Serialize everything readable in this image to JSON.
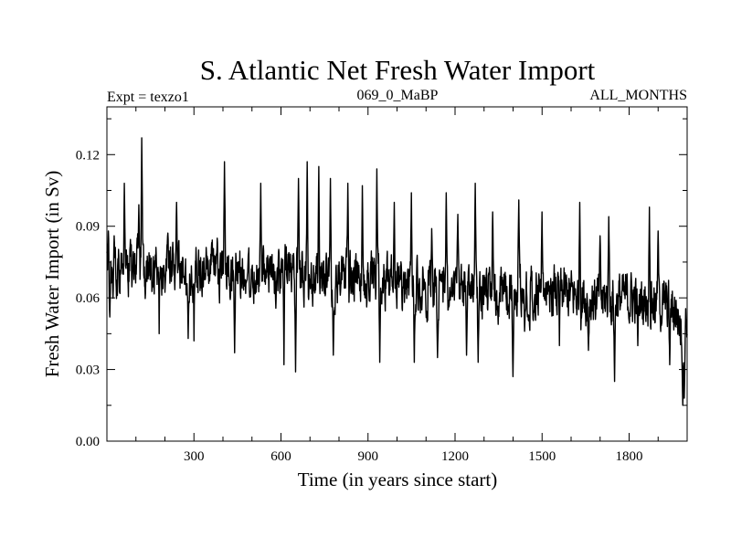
{
  "chart_data": {
    "type": "line",
    "title": "S. Atlantic Net Fresh Water Import",
    "subtitle_left": "Expt = texzo1",
    "subtitle_center": "069_0_MaBP",
    "subtitle_right": "ALL_MONTHS",
    "xlabel": "Time (in years since start)",
    "ylabel": "Fresh Water Import (in Sv)",
    "xlim": [
      0,
      2000
    ],
    "ylim": [
      0,
      0.14
    ],
    "xticks": [
      300,
      600,
      900,
      1200,
      1500,
      1800
    ],
    "xtick_labels": [
      "300",
      "600",
      "900",
      "1200",
      "1500",
      "1800"
    ],
    "yticks": [
      0,
      0.03,
      0.06,
      0.09,
      0.12
    ],
    "ytick_labels": [
      "0.00",
      "0.03",
      "0.06",
      "0.09",
      "0.12"
    ],
    "series_color": "#000000",
    "trend": {
      "x": [
        0,
        100,
        200,
        300,
        400,
        500,
        600,
        700,
        800,
        900,
        1000,
        1100,
        1200,
        1300,
        1400,
        1500,
        1600,
        1700,
        1800,
        1900,
        1960,
        1985,
        2000
      ],
      "y": [
        0.071,
        0.073,
        0.072,
        0.071,
        0.071,
        0.07,
        0.069,
        0.069,
        0.068,
        0.068,
        0.066,
        0.065,
        0.063,
        0.063,
        0.062,
        0.063,
        0.061,
        0.059,
        0.06,
        0.058,
        0.055,
        0.045,
        0.052
      ]
    },
    "peaks": {
      "x": [
        5,
        25,
        60,
        110,
        120,
        180,
        240,
        300,
        380,
        405,
        530,
        610,
        660,
        690,
        730,
        770,
        830,
        880,
        930,
        990,
        1050,
        1120,
        1170,
        1210,
        1270,
        1330,
        1420,
        1500,
        1560,
        1630,
        1700,
        1730,
        1870,
        1900
      ],
      "y": [
        0.088,
        0.086,
        0.108,
        0.099,
        0.127,
        0.115,
        0.1,
        0.104,
        0.085,
        0.117,
        0.108,
        0.1,
        0.11,
        0.117,
        0.115,
        0.11,
        0.108,
        0.107,
        0.114,
        0.1,
        0.104,
        0.089,
        0.104,
        0.095,
        0.108,
        0.096,
        0.101,
        0.096,
        0.09,
        0.1,
        0.086,
        0.094,
        0.098,
        0.088
      ]
    },
    "troughs": {
      "x": [
        10,
        180,
        280,
        300,
        440,
        610,
        650,
        780,
        940,
        1060,
        1140,
        1240,
        1280,
        1400,
        1440,
        1560,
        1660,
        1750,
        1830,
        1940,
        1985,
        1990
      ],
      "y": [
        0.052,
        0.045,
        0.043,
        0.042,
        0.037,
        0.032,
        0.029,
        0.036,
        0.033,
        0.033,
        0.035,
        0.036,
        0.033,
        0.027,
        0.046,
        0.04,
        0.038,
        0.025,
        0.04,
        0.032,
        0.015,
        0.018
      ]
    },
    "noise_amplitude": 0.0085,
    "samples": 2000
  }
}
